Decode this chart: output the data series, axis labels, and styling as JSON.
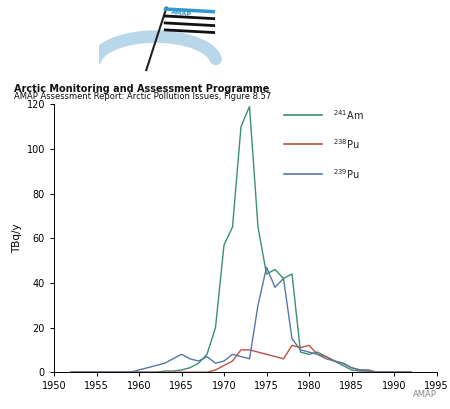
{
  "title_bold": "Arctic Monitoring and Assessment Programme",
  "title_sub": "AMAP Assessment Report: Arctic Pollution Issues, Figure 8.57",
  "ylabel": "TBq/y",
  "xlim": [
    1950,
    1995
  ],
  "ylim": [
    0,
    120
  ],
  "yticks": [
    0,
    20,
    40,
    60,
    80,
    100,
    120
  ],
  "xticks": [
    1950,
    1955,
    1960,
    1965,
    1970,
    1975,
    1980,
    1985,
    1990,
    1995
  ],
  "background_color": "#ffffff",
  "am241_color": "#3a9070",
  "pu238_color": "#c05040",
  "pu239_color": "#5577aa",
  "am241": {
    "years": [
      1952,
      1953,
      1954,
      1955,
      1956,
      1957,
      1958,
      1959,
      1960,
      1961,
      1962,
      1963,
      1964,
      1965,
      1966,
      1967,
      1968,
      1969,
      1970,
      1971,
      1972,
      1973,
      1974,
      1975,
      1976,
      1977,
      1978,
      1979,
      1980,
      1981,
      1982,
      1983,
      1984,
      1985,
      1986,
      1987,
      1988,
      1989,
      1990,
      1991,
      1992
    ],
    "values": [
      0,
      0,
      0,
      0,
      0,
      0,
      0,
      0,
      0,
      0,
      0,
      0.5,
      0.5,
      1,
      2,
      4,
      8,
      20,
      57,
      65,
      110,
      119,
      65,
      44,
      46,
      42,
      44,
      9,
      8,
      9,
      7,
      5,
      3,
      1,
      0.5,
      0.5,
      0,
      0,
      0,
      0,
      0
    ]
  },
  "pu238": {
    "years": [
      1952,
      1953,
      1954,
      1955,
      1956,
      1957,
      1958,
      1959,
      1960,
      1961,
      1962,
      1963,
      1964,
      1965,
      1966,
      1967,
      1968,
      1969,
      1970,
      1971,
      1972,
      1973,
      1974,
      1975,
      1976,
      1977,
      1978,
      1979,
      1980,
      1981,
      1982,
      1983,
      1984,
      1985,
      1986,
      1987,
      1988,
      1989,
      1990,
      1991,
      1992
    ],
    "values": [
      0,
      0,
      0,
      0,
      0,
      0,
      0,
      0,
      0,
      0,
      0,
      0,
      0,
      0,
      0,
      0,
      0,
      1,
      3,
      5,
      10,
      10,
      9,
      8,
      7,
      6,
      12,
      11,
      12,
      8,
      7,
      5,
      4,
      2,
      1,
      1,
      0,
      0,
      0,
      0,
      0
    ]
  },
  "pu239": {
    "years": [
      1952,
      1953,
      1954,
      1955,
      1956,
      1957,
      1958,
      1959,
      1960,
      1961,
      1962,
      1963,
      1964,
      1965,
      1966,
      1967,
      1968,
      1969,
      1970,
      1971,
      1972,
      1973,
      1974,
      1975,
      1976,
      1977,
      1978,
      1979,
      1980,
      1981,
      1982,
      1983,
      1984,
      1985,
      1986,
      1987,
      1988,
      1989,
      1990,
      1991,
      1992
    ],
    "values": [
      0,
      0,
      0,
      0,
      0,
      0,
      0,
      0,
      1,
      2,
      3,
      4,
      6,
      8,
      6,
      5,
      7,
      4,
      5,
      8,
      7,
      6,
      30,
      47,
      38,
      42,
      15,
      10,
      9,
      8,
      6,
      5,
      4,
      2,
      1,
      0.5,
      0,
      0,
      0,
      0,
      0
    ]
  },
  "logo_arc_color": "#b8d8ea",
  "logo_flag_text_color": "#3399cc",
  "amap_watermark_color": "#888888"
}
